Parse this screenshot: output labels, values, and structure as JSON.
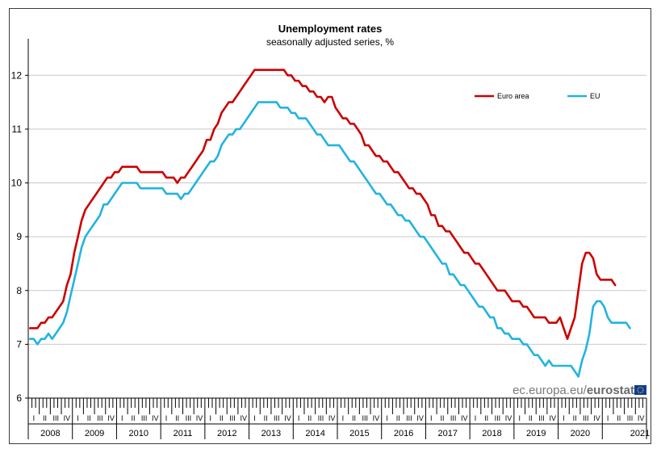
{
  "chart_data": {
    "type": "line",
    "title": "Unemployment rates",
    "subtitle": "seasonally adjusted series, %",
    "xlabel": "",
    "ylabel": "",
    "ylim": [
      6,
      12.5
    ],
    "y_ticks": [
      6,
      7,
      8,
      9,
      10,
      11,
      12
    ],
    "grid": true,
    "legend_position": "top-right",
    "x_start": "2008-01",
    "quarter_labels": [
      "I",
      "II",
      "III",
      "IV"
    ],
    "years": [
      "2008",
      "2009",
      "2010",
      "2011",
      "2012",
      "2013",
      "2014",
      "2015",
      "2016",
      "2017",
      "2018",
      "2019",
      "2020",
      "2021"
    ],
    "watermark": {
      "site": "ec.europa.eu/",
      "brand": "eurostat"
    },
    "series": [
      {
        "name": "Euro area",
        "color": "#cc0000",
        "values": [
          7.3,
          7.3,
          7.3,
          7.4,
          7.4,
          7.5,
          7.5,
          7.6,
          7.7,
          7.8,
          8.1,
          8.3,
          8.7,
          9.0,
          9.3,
          9.5,
          9.6,
          9.7,
          9.8,
          9.9,
          10.0,
          10.1,
          10.1,
          10.2,
          10.2,
          10.3,
          10.3,
          10.3,
          10.3,
          10.3,
          10.2,
          10.2,
          10.2,
          10.2,
          10.2,
          10.2,
          10.2,
          10.1,
          10.1,
          10.1,
          10.0,
          10.1,
          10.1,
          10.2,
          10.3,
          10.4,
          10.5,
          10.6,
          10.8,
          10.8,
          11.0,
          11.1,
          11.3,
          11.4,
          11.5,
          11.5,
          11.6,
          11.7,
          11.8,
          11.9,
          12.0,
          12.1,
          12.1,
          12.1,
          12.1,
          12.1,
          12.1,
          12.1,
          12.1,
          12.1,
          12.0,
          12.0,
          11.9,
          11.9,
          11.8,
          11.8,
          11.7,
          11.7,
          11.6,
          11.6,
          11.5,
          11.6,
          11.6,
          11.4,
          11.3,
          11.2,
          11.2,
          11.1,
          11.1,
          11.0,
          10.9,
          10.7,
          10.7,
          10.6,
          10.5,
          10.5,
          10.4,
          10.4,
          10.3,
          10.2,
          10.2,
          10.1,
          10.0,
          9.9,
          9.9,
          9.8,
          9.8,
          9.7,
          9.6,
          9.4,
          9.4,
          9.2,
          9.2,
          9.1,
          9.1,
          9.0,
          8.9,
          8.8,
          8.7,
          8.7,
          8.6,
          8.5,
          8.5,
          8.4,
          8.3,
          8.2,
          8.1,
          8.0,
          8.0,
          8.0,
          7.9,
          7.8,
          7.8,
          7.8,
          7.7,
          7.7,
          7.6,
          7.5,
          7.5,
          7.5,
          7.5,
          7.4,
          7.4,
          7.4,
          7.5,
          7.3,
          7.1,
          7.3,
          7.5,
          8.0,
          8.5,
          8.7,
          8.7,
          8.6,
          8.3,
          8.2,
          8.2,
          8.2,
          8.2,
          8.1
        ]
      },
      {
        "name": "EU",
        "color": "#22b3e0",
        "values": [
          7.1,
          7.1,
          7.0,
          7.1,
          7.1,
          7.2,
          7.1,
          7.2,
          7.3,
          7.4,
          7.6,
          7.9,
          8.2,
          8.5,
          8.8,
          9.0,
          9.1,
          9.2,
          9.3,
          9.4,
          9.6,
          9.6,
          9.7,
          9.8,
          9.9,
          10.0,
          10.0,
          10.0,
          10.0,
          10.0,
          9.9,
          9.9,
          9.9,
          9.9,
          9.9,
          9.9,
          9.9,
          9.8,
          9.8,
          9.8,
          9.8,
          9.7,
          9.8,
          9.8,
          9.9,
          10.0,
          10.1,
          10.2,
          10.3,
          10.4,
          10.4,
          10.5,
          10.7,
          10.8,
          10.9,
          10.9,
          11.0,
          11.0,
          11.1,
          11.2,
          11.3,
          11.4,
          11.5,
          11.5,
          11.5,
          11.5,
          11.5,
          11.5,
          11.4,
          11.4,
          11.4,
          11.3,
          11.3,
          11.2,
          11.2,
          11.2,
          11.1,
          11.0,
          10.9,
          10.9,
          10.8,
          10.7,
          10.7,
          10.7,
          10.7,
          10.6,
          10.5,
          10.4,
          10.4,
          10.3,
          10.2,
          10.1,
          10.0,
          9.9,
          9.8,
          9.8,
          9.7,
          9.6,
          9.6,
          9.5,
          9.4,
          9.4,
          9.3,
          9.3,
          9.2,
          9.1,
          9.0,
          9.0,
          8.9,
          8.8,
          8.7,
          8.6,
          8.5,
          8.5,
          8.3,
          8.3,
          8.2,
          8.1,
          8.1,
          8.0,
          7.9,
          7.8,
          7.7,
          7.7,
          7.6,
          7.5,
          7.5,
          7.3,
          7.3,
          7.2,
          7.2,
          7.1,
          7.1,
          7.1,
          7.0,
          7.0,
          6.9,
          6.8,
          6.8,
          6.7,
          6.6,
          6.7,
          6.6,
          6.6,
          6.6,
          6.6,
          6.6,
          6.6,
          6.5,
          6.4,
          6.7,
          6.9,
          7.2,
          7.7,
          7.8,
          7.8,
          7.7,
          7.5,
          7.4,
          7.4,
          7.4,
          7.4,
          7.4,
          7.3
        ]
      }
    ]
  }
}
